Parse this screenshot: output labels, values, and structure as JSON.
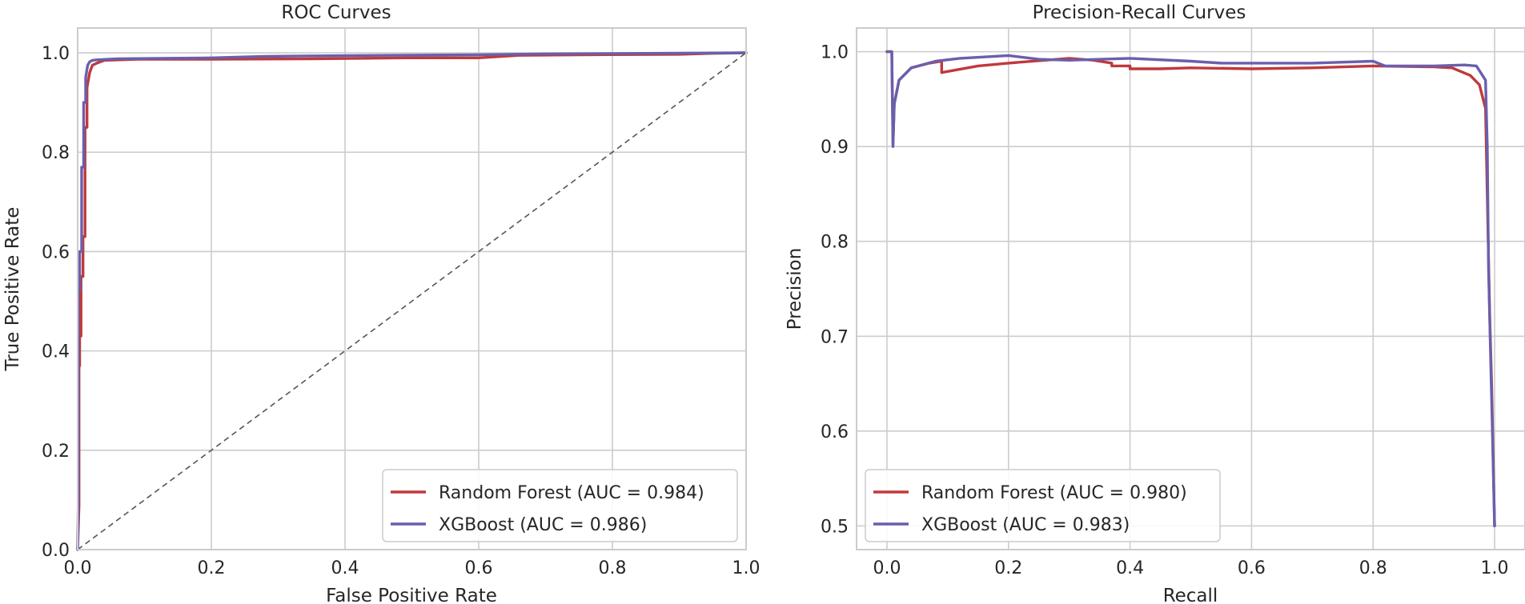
{
  "chart_data": [
    {
      "type": "line",
      "title": "ROC Curves",
      "xlabel": "False Positive Rate",
      "ylabel": "True Positive Rate",
      "xlim": [
        0,
        1
      ],
      "ylim": [
        0,
        1.05
      ],
      "xticks": [
        0,
        0.2,
        0.4,
        0.6,
        0.8,
        1.0
      ],
      "xtick_labels": [
        "0.0",
        "0.2",
        "0.4",
        "0.6",
        "0.8",
        "1.0"
      ],
      "yticks": [
        0,
        0.2,
        0.4,
        0.6,
        0.8,
        1.0
      ],
      "ytick_labels": [
        "0.0",
        "0.2",
        "0.4",
        "0.6",
        "0.8",
        "1.0"
      ],
      "grid": true,
      "legend_position": "lower-right",
      "reference_line": {
        "x": [
          0,
          1
        ],
        "y": [
          0,
          1
        ],
        "style": "dashed",
        "color": "#555555"
      },
      "series": [
        {
          "name": "Random Forest (AUC = 0.984)",
          "color": "#c0393b",
          "x": [
            0,
            0.002,
            0.002,
            0.003,
            0.003,
            0.005,
            0.005,
            0.008,
            0.008,
            0.011,
            0.011,
            0.014,
            0.014,
            0.018,
            0.022,
            0.03,
            0.04,
            0.09,
            0.2,
            0.35,
            0.5,
            0.6,
            0.66,
            0.75,
            0.9,
            0.95,
            1.0
          ],
          "y": [
            0,
            0.09,
            0.37,
            0.37,
            0.43,
            0.43,
            0.55,
            0.55,
            0.63,
            0.63,
            0.85,
            0.85,
            0.93,
            0.96,
            0.975,
            0.98,
            0.985,
            0.987,
            0.987,
            0.988,
            0.99,
            0.99,
            0.995,
            0.996,
            0.997,
            0.999,
            1.0
          ]
        },
        {
          "name": "XGBoost (AUC = 0.986)",
          "color": "#6a5fad",
          "x": [
            0,
            0.001,
            0.001,
            0.003,
            0.003,
            0.006,
            0.006,
            0.009,
            0.009,
            0.012,
            0.012,
            0.015,
            0.018,
            0.022,
            0.03,
            0.06,
            0.2,
            0.28,
            0.45,
            0.6,
            0.7,
            0.85,
            1.0
          ],
          "y": [
            0,
            0.1,
            0.52,
            0.52,
            0.6,
            0.6,
            0.77,
            0.77,
            0.9,
            0.9,
            0.95,
            0.975,
            0.982,
            0.985,
            0.986,
            0.988,
            0.99,
            0.993,
            0.995,
            0.996,
            0.998,
            0.999,
            1.0
          ]
        }
      ]
    },
    {
      "type": "line",
      "title": "Precision-Recall Curves",
      "xlabel": "Recall",
      "ylabel": "Precision",
      "xlim": [
        -0.05,
        1.05
      ],
      "ylim": [
        0.475,
        1.025
      ],
      "xticks": [
        0,
        0.2,
        0.4,
        0.6,
        0.8,
        1.0
      ],
      "xtick_labels": [
        "0.0",
        "0.2",
        "0.4",
        "0.6",
        "0.8",
        "1.0"
      ],
      "yticks": [
        0.5,
        0.6,
        0.7,
        0.8,
        0.9,
        1.0
      ],
      "ytick_labels": [
        "0.5",
        "0.6",
        "0.7",
        "0.8",
        "0.9",
        "1.0"
      ],
      "grid": true,
      "legend_position": "lower-left",
      "series": [
        {
          "name": "Random Forest (AUC = 0.980)",
          "color": "#c0393b",
          "x": [
            0.0,
            0.008,
            0.01,
            0.012,
            0.02,
            0.04,
            0.07,
            0.09,
            0.09,
            0.15,
            0.2,
            0.3,
            0.34,
            0.37,
            0.37,
            0.4,
            0.4,
            0.45,
            0.5,
            0.6,
            0.7,
            0.8,
            0.9,
            0.93,
            0.96,
            0.975,
            0.985,
            0.99,
            0.992,
            0.995,
            0.998,
            1.0
          ],
          "y": [
            1.0,
            1.0,
            0.902,
            0.945,
            0.97,
            0.983,
            0.988,
            0.99,
            0.978,
            0.985,
            0.988,
            0.993,
            0.991,
            0.988,
            0.985,
            0.985,
            0.982,
            0.982,
            0.983,
            0.982,
            0.983,
            0.985,
            0.984,
            0.983,
            0.975,
            0.965,
            0.94,
            0.78,
            0.72,
            0.65,
            0.56,
            0.5
          ]
        },
        {
          "name": "XGBoost (AUC = 0.983)",
          "color": "#6a5fad",
          "x": [
            0.0,
            0.008,
            0.01,
            0.012,
            0.02,
            0.04,
            0.08,
            0.12,
            0.2,
            0.25,
            0.3,
            0.4,
            0.5,
            0.55,
            0.6,
            0.7,
            0.8,
            0.82,
            0.9,
            0.95,
            0.97,
            0.985,
            0.988,
            0.99,
            0.993,
            0.996,
            1.0
          ],
          "y": [
            1.0,
            1.0,
            0.9,
            0.945,
            0.97,
            0.983,
            0.99,
            0.993,
            0.996,
            0.992,
            0.991,
            0.993,
            0.99,
            0.988,
            0.988,
            0.988,
            0.99,
            0.985,
            0.985,
            0.986,
            0.985,
            0.97,
            0.9,
            0.77,
            0.69,
            0.61,
            0.5
          ]
        }
      ]
    }
  ]
}
